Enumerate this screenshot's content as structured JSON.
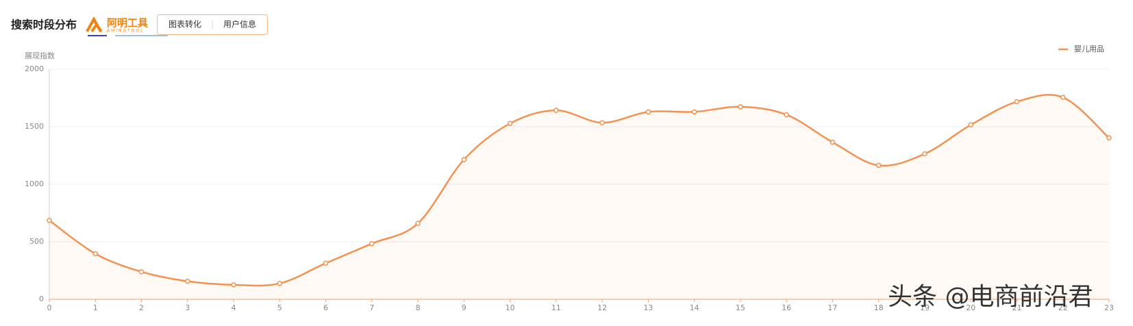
{
  "header": {
    "title": "搜索时段分布",
    "logo": "阿明工具",
    "logo_sub": "AMINGTOOL",
    "tabs": [
      "图表转化",
      "用户信息"
    ]
  },
  "chart_data": {
    "type": "line",
    "y_label": "展现指数",
    "categories": [
      "0",
      "1",
      "2",
      "3",
      "4",
      "5",
      "6",
      "7",
      "8",
      "9",
      "10",
      "11",
      "12",
      "13",
      "14",
      "15",
      "16",
      "17",
      "18",
      "19",
      "20",
      "21",
      "22",
      "23"
    ],
    "series": [
      {
        "name": "婴儿用品",
        "color": "#f39150",
        "values": [
          685,
          396,
          239,
          157,
          126,
          138,
          314,
          484,
          660,
          1214,
          1528,
          1642,
          1535,
          1629,
          1629,
          1673,
          1604,
          1365,
          1164,
          1264,
          1516,
          1717,
          1755,
          1403
        ]
      }
    ],
    "ylim": [
      0,
      2000
    ],
    "yticks": [
      0,
      500,
      1000,
      1500,
      2000
    ],
    "grid": true,
    "area": true,
    "legend": "top-right"
  },
  "watermark": "头条 @电商前沿君"
}
